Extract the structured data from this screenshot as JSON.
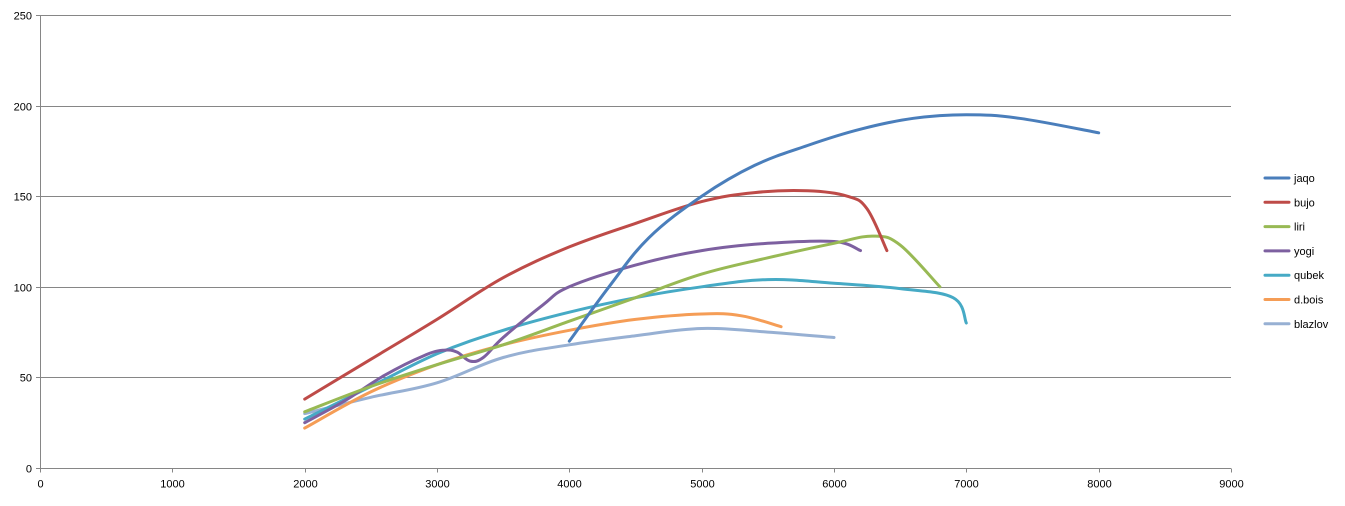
{
  "chart_data": {
    "type": "line",
    "title": "",
    "xlabel": "",
    "ylabel": "",
    "xlim": [
      0,
      9000
    ],
    "ylim": [
      0,
      250
    ],
    "x_ticks": [
      0,
      1000,
      2000,
      3000,
      4000,
      5000,
      6000,
      7000,
      8000,
      9000
    ],
    "y_ticks": [
      0,
      50,
      100,
      150,
      200,
      250
    ],
    "x_tick_labels": [
      "0",
      "1000",
      "2000",
      "3000",
      "4000",
      "5000",
      "6000",
      "7000",
      "8000",
      "9000"
    ],
    "y_tick_labels": [
      "0",
      "50",
      "100",
      "150",
      "200",
      "250"
    ],
    "grid": "horizontal",
    "legend_position": "right",
    "series": [
      {
        "name": "jaqo",
        "color": "#4a7ebb",
        "x": [
          4000,
          4300,
          4600,
          5000,
          5400,
          5800,
          6200,
          6600,
          7000,
          7400,
          8000
        ],
        "y": [
          70,
          100,
          127,
          150,
          167,
          178,
          187,
          193,
          195,
          193,
          185
        ]
      },
      {
        "name": "bujo",
        "color": "#be4b48",
        "x": [
          2000,
          2500,
          3000,
          3500,
          4000,
          4500,
          5000,
          5400,
          5800,
          6100,
          6250,
          6400
        ],
        "y": [
          38,
          60,
          82,
          105,
          122,
          135,
          147,
          152,
          153,
          150,
          143,
          120
        ]
      },
      {
        "name": "liri",
        "color": "#98b954",
        "x": [
          2000,
          2500,
          3000,
          3500,
          4000,
          4500,
          5000,
          5500,
          6000,
          6300,
          6500,
          6800
        ],
        "y": [
          31,
          45,
          57,
          68,
          81,
          94,
          107,
          116,
          124,
          128,
          123,
          100
        ]
      },
      {
        "name": "yogi",
        "color": "#7d60a0",
        "x": [
          2000,
          2300,
          2600,
          2900,
          3050,
          3150,
          3250,
          3350,
          3500,
          3800,
          4000,
          4500,
          5000,
          5500,
          6000,
          6200
        ],
        "y": [
          25,
          37,
          51,
          62,
          65,
          64,
          59,
          61,
          72,
          90,
          100,
          112,
          120,
          124,
          125,
          120
        ]
      },
      {
        "name": "qubek",
        "color": "#46aac5",
        "x": [
          2000,
          2500,
          3000,
          3500,
          4000,
          4500,
          5000,
          5500,
          6000,
          6500,
          6900,
          7000
        ],
        "y": [
          27,
          45,
          63,
          76,
          86,
          94,
          100,
          104,
          102,
          99,
          94,
          80
        ]
      },
      {
        "name": "d.bois",
        "color": "#f59d56",
        "x": [
          2000,
          2500,
          3000,
          3500,
          4000,
          4500,
          5000,
          5300,
          5600
        ],
        "y": [
          22,
          42,
          57,
          68,
          76,
          82,
          85,
          84,
          78
        ]
      },
      {
        "name": "blazlov",
        "color": "#97b0d3",
        "x": [
          2000,
          2500,
          3000,
          3500,
          4000,
          4500,
          5000,
          5500,
          6000
        ],
        "y": [
          30,
          39,
          47,
          61,
          68,
          73,
          77,
          75,
          72
        ]
      }
    ]
  }
}
